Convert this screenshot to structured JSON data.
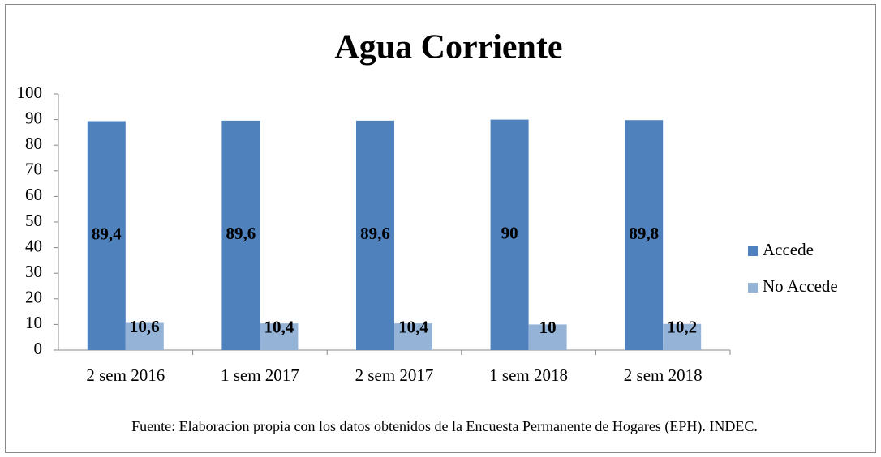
{
  "chart_data": {
    "type": "bar",
    "title": "Agua Corriente",
    "categories": [
      "2 sem 2016",
      "1 sem 2017",
      "2 sem 2017",
      "1 sem 2018",
      "2 sem 2018"
    ],
    "series": [
      {
        "name": "Accede",
        "color": "#4f81bd",
        "values": [
          89.4,
          89.6,
          89.6,
          90,
          89.8
        ],
        "value_labels": [
          "89,4",
          "89,6",
          "89,6",
          "90",
          "89,8"
        ]
      },
      {
        "name": "No Accede",
        "color": "#95b3d7",
        "values": [
          10.6,
          10.4,
          10.4,
          10,
          10.2
        ],
        "value_labels": [
          "10,6",
          "10,4",
          "10,4",
          "10",
          "10,2"
        ]
      }
    ],
    "ylim": [
      0,
      100
    ],
    "yticks": [
      0,
      10,
      20,
      30,
      40,
      50,
      60,
      70,
      80,
      90,
      100
    ],
    "grid": false,
    "legend": "right",
    "note": "Fuente: Elaboracion  propia con los datos obtenidos de la Encuesta Permanente de Hogares (EPH). INDEC."
  }
}
